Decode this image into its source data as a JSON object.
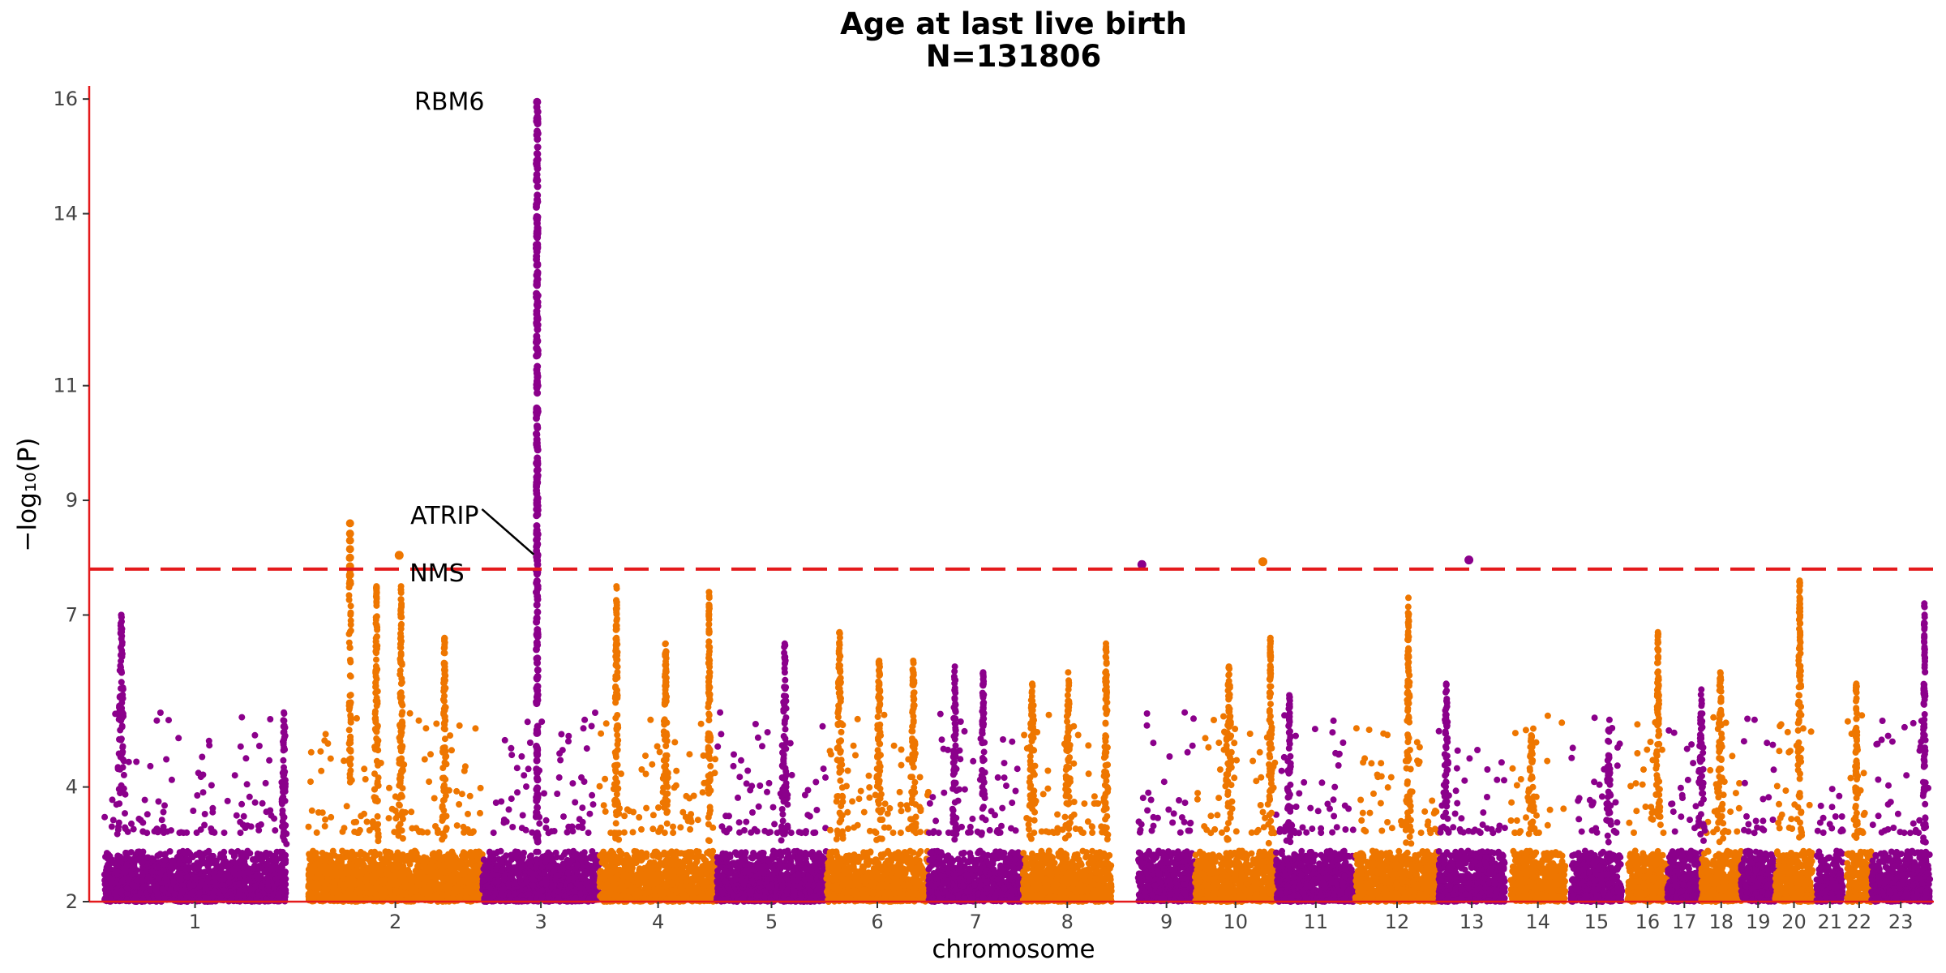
{
  "chart_data": {
    "type": "scatter",
    "subtype": "manhattan",
    "title": "Age at last live birth",
    "subtitle": "N=131806",
    "xlabel": "chromosome",
    "ylabel": "−log₁₀(P)",
    "ylim": [
      2,
      16.2
    ],
    "yticks": [
      2,
      4,
      7,
      9,
      11,
      14,
      16
    ],
    "threshold": 7.8,
    "colors": {
      "odd": "#8B008B",
      "even": "#EE7600",
      "threshold": "#E41A1C",
      "axis": "#E41A1C"
    },
    "grid": false,
    "chromosomes": [
      {
        "label": "1",
        "start": 0.0,
        "end": 0.96,
        "color": "odd"
      },
      {
        "label": "2",
        "start": 1.08,
        "end": 2.0,
        "color": "even"
      },
      {
        "label": "3",
        "start": 2.0,
        "end": 2.62,
        "color": "odd"
      },
      {
        "label": "4",
        "start": 2.62,
        "end": 3.24,
        "color": "even"
      },
      {
        "label": "5",
        "start": 3.24,
        "end": 3.82,
        "color": "odd"
      },
      {
        "label": "6",
        "start": 3.82,
        "end": 4.36,
        "color": "even"
      },
      {
        "label": "7",
        "start": 4.36,
        "end": 4.86,
        "color": "odd"
      },
      {
        "label": "8",
        "start": 4.86,
        "end": 5.33,
        "color": "even"
      },
      {
        "label": "9",
        "start": 5.47,
        "end": 5.77,
        "color": "odd"
      },
      {
        "label": "10",
        "start": 5.77,
        "end": 6.2,
        "color": "even"
      },
      {
        "label": "11",
        "start": 6.2,
        "end": 6.62,
        "color": "odd"
      },
      {
        "label": "12",
        "start": 6.62,
        "end": 7.06,
        "color": "even"
      },
      {
        "label": "13",
        "start": 7.06,
        "end": 7.41,
        "color": "odd"
      },
      {
        "label": "14",
        "start": 7.44,
        "end": 7.73,
        "color": "even"
      },
      {
        "label": "15",
        "start": 7.76,
        "end": 8.03,
        "color": "odd"
      },
      {
        "label": "16",
        "start": 8.06,
        "end": 8.27,
        "color": "even"
      },
      {
        "label": "17",
        "start": 8.27,
        "end": 8.45,
        "color": "odd"
      },
      {
        "label": "18",
        "start": 8.45,
        "end": 8.66,
        "color": "even"
      },
      {
        "label": "19",
        "start": 8.66,
        "end": 8.84,
        "color": "odd"
      },
      {
        "label": "20",
        "start": 8.84,
        "end": 9.04,
        "color": "even"
      },
      {
        "label": "21",
        "start": 9.06,
        "end": 9.2,
        "color": "odd"
      },
      {
        "label": "22",
        "start": 9.22,
        "end": 9.35,
        "color": "even"
      },
      {
        "label": "23",
        "start": 9.35,
        "end": 9.66,
        "color": "odd"
      }
    ],
    "peaks": [
      {
        "x": 0.09,
        "y": 7.0,
        "width": 0.05
      },
      {
        "x": 0.95,
        "y": 5.3,
        "width": 0.03
      },
      {
        "x": 1.44,
        "y": 7.5,
        "width": 0.03
      },
      {
        "x": 1.57,
        "y": 7.5,
        "width": 0.03
      },
      {
        "x": 1.8,
        "y": 6.6,
        "width": 0.03
      },
      {
        "x": 2.71,
        "y": 7.5,
        "width": 0.03
      },
      {
        "x": 2.97,
        "y": 6.5,
        "width": 0.04
      },
      {
        "x": 3.2,
        "y": 7.4,
        "width": 0.02
      },
      {
        "x": 3.6,
        "y": 6.5,
        "width": 0.04
      },
      {
        "x": 3.89,
        "y": 6.7,
        "width": 0.04
      },
      {
        "x": 4.1,
        "y": 6.2,
        "width": 0.04
      },
      {
        "x": 4.28,
        "y": 6.2,
        "width": 0.04
      },
      {
        "x": 4.5,
        "y": 6.1,
        "width": 0.03
      },
      {
        "x": 4.65,
        "y": 6.0,
        "width": 0.03
      },
      {
        "x": 4.91,
        "y": 5.8,
        "width": 0.05
      },
      {
        "x": 5.1,
        "y": 6.0,
        "width": 0.04
      },
      {
        "x": 5.3,
        "y": 6.5,
        "width": 0.03
      },
      {
        "x": 5.95,
        "y": 6.1,
        "width": 0.05
      },
      {
        "x": 6.17,
        "y": 6.6,
        "width": 0.03
      },
      {
        "x": 6.27,
        "y": 5.6,
        "width": 0.03
      },
      {
        "x": 6.9,
        "y": 7.3,
        "width": 0.03
      },
      {
        "x": 7.1,
        "y": 5.8,
        "width": 0.04
      },
      {
        "x": 7.55,
        "y": 4.9,
        "width": 0.04
      },
      {
        "x": 7.96,
        "y": 5.0,
        "width": 0.03
      },
      {
        "x": 8.22,
        "y": 6.7,
        "width": 0.03
      },
      {
        "x": 8.45,
        "y": 5.7,
        "width": 0.04
      },
      {
        "x": 8.55,
        "y": 6.0,
        "width": 0.04
      },
      {
        "x": 8.97,
        "y": 7.6,
        "width": 0.03
      },
      {
        "x": 9.27,
        "y": 5.8,
        "width": 0.03
      },
      {
        "x": 9.63,
        "y": 7.2,
        "width": 0.02
      }
    ],
    "significant_points": [
      {
        "x": 1.56,
        "y": 8.04
      },
      {
        "x": 5.49,
        "y": 7.88
      },
      {
        "x": 6.13,
        "y": 7.93
      },
      {
        "x": 7.22,
        "y": 7.96
      }
    ],
    "annotations": [
      {
        "label": "RBM6",
        "x": 2.29,
        "y": 15.95
      },
      {
        "label": "ATRIP",
        "x": 2.29,
        "y": 8.45
      },
      {
        "label": "NMS",
        "x": 1.56,
        "y": 8.04
      }
    ]
  }
}
